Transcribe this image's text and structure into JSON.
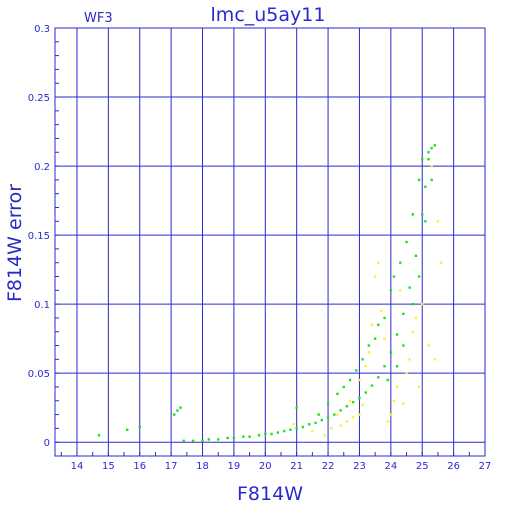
{
  "chart_data": {
    "type": "scatter",
    "title": "lmc_u5ay11",
    "panel_label": "WF3",
    "xlabel": "F814W",
    "ylabel": "F814W error",
    "xlim": [
      13.3,
      27.0
    ],
    "ylim": [
      -0.01,
      0.3
    ],
    "x_ticks": [
      14,
      15,
      16,
      17,
      18,
      19,
      20,
      21,
      22,
      23,
      24,
      25,
      26,
      27
    ],
    "y_ticks": [
      0,
      0.05,
      0.1,
      0.15,
      0.2,
      0.25,
      0.3
    ],
    "y_tick_labels": [
      "0",
      "0.05",
      "0.1",
      "0.15",
      "0.2",
      "0.25",
      "0.3"
    ],
    "grid": true,
    "colors": {
      "axes": "#2a2acc",
      "grid": "#2a2acc",
      "series_main": "#22dd22",
      "series_outliers": "#ffee33"
    },
    "series": [
      {
        "color": "#22dd22",
        "points": [
          [
            14.7,
            0.005
          ],
          [
            15.6,
            0.009
          ],
          [
            16.0,
            0.011
          ],
          [
            17.1,
            0.02
          ],
          [
            17.2,
            0.023
          ],
          [
            17.3,
            0.025
          ],
          [
            17.4,
            0.001
          ],
          [
            17.7,
            0.001
          ],
          [
            18.0,
            0.001
          ],
          [
            18.2,
            0.002
          ],
          [
            18.5,
            0.002
          ],
          [
            18.8,
            0.003
          ],
          [
            19.0,
            0.003
          ],
          [
            19.3,
            0.004
          ],
          [
            19.5,
            0.004
          ],
          [
            19.8,
            0.005
          ],
          [
            20.0,
            0.006
          ],
          [
            20.2,
            0.006
          ],
          [
            20.4,
            0.007
          ],
          [
            20.6,
            0.008
          ],
          [
            20.8,
            0.009
          ],
          [
            21.0,
            0.01
          ],
          [
            21.2,
            0.011
          ],
          [
            21.4,
            0.013
          ],
          [
            21.6,
            0.014
          ],
          [
            21.8,
            0.016
          ],
          [
            22.0,
            0.018
          ],
          [
            22.2,
            0.02
          ],
          [
            22.4,
            0.023
          ],
          [
            22.6,
            0.026
          ],
          [
            22.8,
            0.029
          ],
          [
            23.0,
            0.032
          ],
          [
            23.2,
            0.036
          ],
          [
            23.4,
            0.041
          ],
          [
            23.6,
            0.047
          ],
          [
            23.8,
            0.055
          ],
          [
            24.0,
            0.065
          ],
          [
            24.2,
            0.078
          ],
          [
            24.4,
            0.093
          ],
          [
            24.6,
            0.112
          ],
          [
            24.8,
            0.135
          ],
          [
            25.0,
            0.165
          ],
          [
            25.1,
            0.185
          ],
          [
            25.2,
            0.205
          ],
          [
            25.3,
            0.213
          ],
          [
            21.0,
            0.025
          ],
          [
            21.7,
            0.02
          ],
          [
            22.0,
            0.028
          ],
          [
            22.3,
            0.035
          ],
          [
            22.5,
            0.04
          ],
          [
            22.7,
            0.045
          ],
          [
            22.9,
            0.052
          ],
          [
            23.1,
            0.06
          ],
          [
            23.3,
            0.07
          ],
          [
            23.5,
            0.075
          ],
          [
            23.6,
            0.085
          ],
          [
            23.8,
            0.09
          ],
          [
            24.0,
            0.11
          ],
          [
            24.1,
            0.12
          ],
          [
            24.3,
            0.13
          ],
          [
            24.5,
            0.145
          ],
          [
            24.7,
            0.165
          ],
          [
            24.9,
            0.19
          ],
          [
            25.0,
            0.205
          ],
          [
            25.2,
            0.21
          ],
          [
            25.4,
            0.215
          ],
          [
            25.3,
            0.19
          ],
          [
            25.1,
            0.16
          ],
          [
            24.9,
            0.12
          ],
          [
            24.7,
            0.1
          ],
          [
            24.4,
            0.07
          ],
          [
            24.2,
            0.055
          ],
          [
            23.9,
            0.045
          ]
        ]
      },
      {
        "color": "#ffee33",
        "points": [
          [
            21.5,
            0.008
          ],
          [
            21.9,
            0.005
          ],
          [
            22.1,
            0.01
          ],
          [
            22.4,
            0.012
          ],
          [
            22.6,
            0.015
          ],
          [
            22.8,
            0.018
          ],
          [
            23.0,
            0.02
          ],
          [
            23.1,
            0.027
          ],
          [
            23.2,
            0.055
          ],
          [
            23.3,
            0.065
          ],
          [
            23.4,
            0.085
          ],
          [
            23.5,
            0.12
          ],
          [
            23.6,
            0.13
          ],
          [
            23.7,
            0.095
          ],
          [
            23.8,
            0.075
          ],
          [
            23.9,
            0.015
          ],
          [
            24.0,
            0.02
          ],
          [
            24.1,
            0.03
          ],
          [
            24.2,
            0.04
          ],
          [
            24.3,
            0.11
          ],
          [
            24.4,
            0.028
          ],
          [
            24.5,
            0.05
          ],
          [
            24.6,
            0.06
          ],
          [
            24.7,
            0.08
          ],
          [
            24.8,
            0.09
          ],
          [
            25.0,
            0.1
          ],
          [
            25.2,
            0.07
          ],
          [
            25.4,
            0.06
          ],
          [
            25.5,
            0.16
          ],
          [
            25.3,
            0.2
          ],
          [
            25.6,
            0.13
          ],
          [
            24.9,
            0.04
          ],
          [
            23.0,
            0.045
          ],
          [
            22.7,
            0.03
          ],
          [
            22.3,
            0.02
          ],
          [
            20.9,
            0.013
          ]
        ]
      }
    ]
  }
}
